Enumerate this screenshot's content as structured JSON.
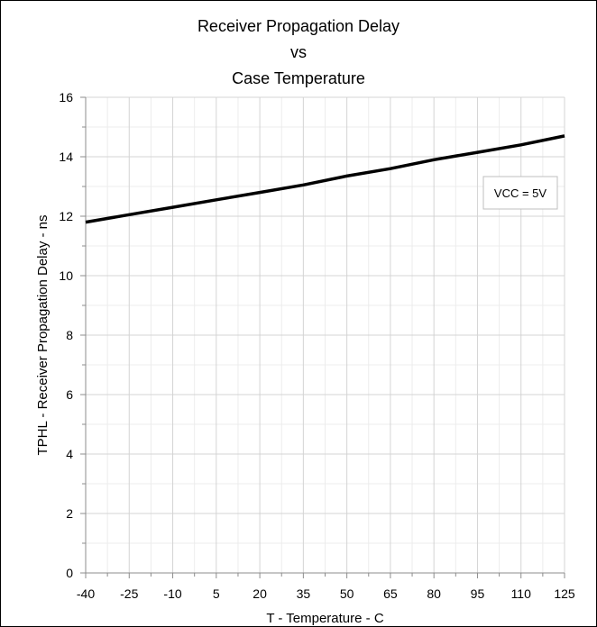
{
  "chart_data": {
    "type": "line",
    "title": [
      "Receiver Propagation Delay",
      "vs",
      "Case Temperature"
    ],
    "xlabel": "T - Temperature - C",
    "ylabel": "TPHL - Receiver Propagation Delay - ns",
    "xlim": [
      -40,
      125
    ],
    "ylim": [
      0,
      16
    ],
    "x_ticks": [
      -40,
      -25,
      -10,
      5,
      20,
      35,
      50,
      65,
      80,
      95,
      110,
      125
    ],
    "x_tick_labels": [
      "-40",
      "-25",
      "-10",
      "5",
      "20",
      "35",
      "50",
      "65",
      "80",
      "95",
      "110",
      "125"
    ],
    "y_ticks": [
      0,
      2,
      4,
      6,
      8,
      10,
      12,
      14,
      16
    ],
    "y_tick_labels": [
      "0",
      "2",
      "4",
      "6",
      "8",
      "10",
      "12",
      "14",
      "16"
    ],
    "grid": true,
    "legend": {
      "text": "VCC = 5V",
      "placement": "top-right"
    },
    "series": [
      {
        "color": "#000000",
        "x": [
          -40,
          -25,
          -10,
          5,
          20,
          35,
          50,
          65,
          80,
          95,
          110,
          125
        ],
        "y": [
          11.8,
          12.05,
          12.3,
          12.55,
          12.8,
          13.05,
          13.35,
          13.6,
          13.9,
          14.15,
          14.4,
          14.7
        ]
      }
    ]
  }
}
